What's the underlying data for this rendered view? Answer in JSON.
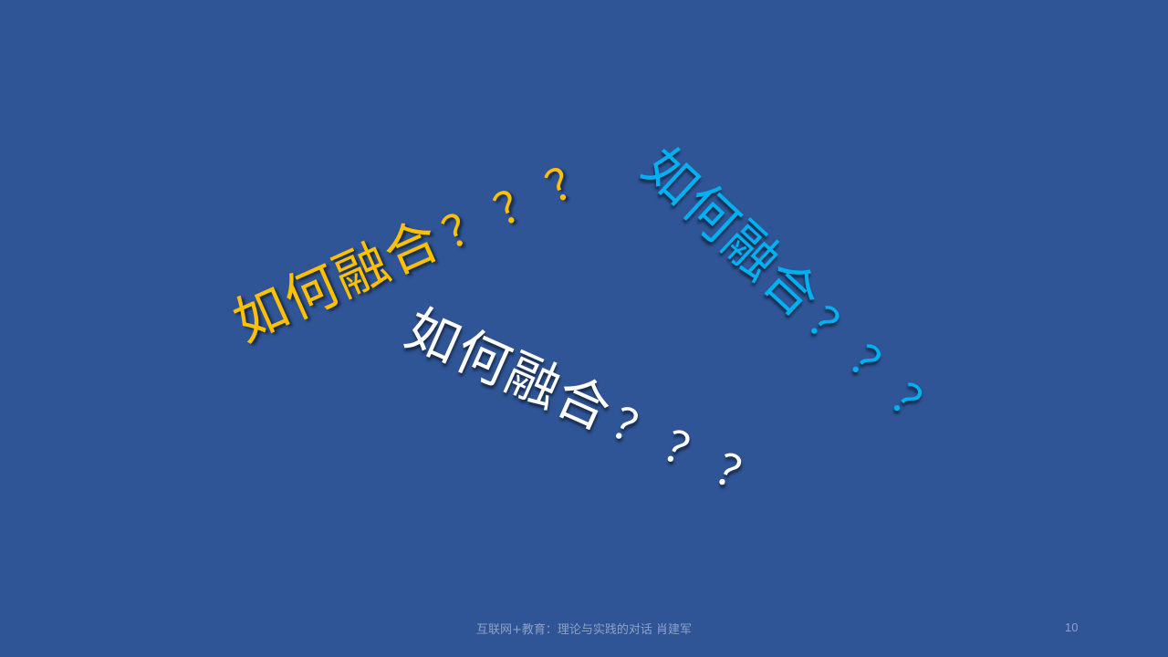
{
  "slide": {
    "background": "#2f5597",
    "phrases": [
      {
        "text": "如何融合",
        "marks": "？？？",
        "color": "#ffc000"
      },
      {
        "text": "如何融合",
        "marks": "？？？",
        "color": "#ffffff"
      },
      {
        "text": "如何融合",
        "marks": "？？？",
        "color": "#00b0f0"
      }
    ],
    "footer": "互联网+教育：理论与实践的对话 肖建军",
    "page_number": "10"
  }
}
